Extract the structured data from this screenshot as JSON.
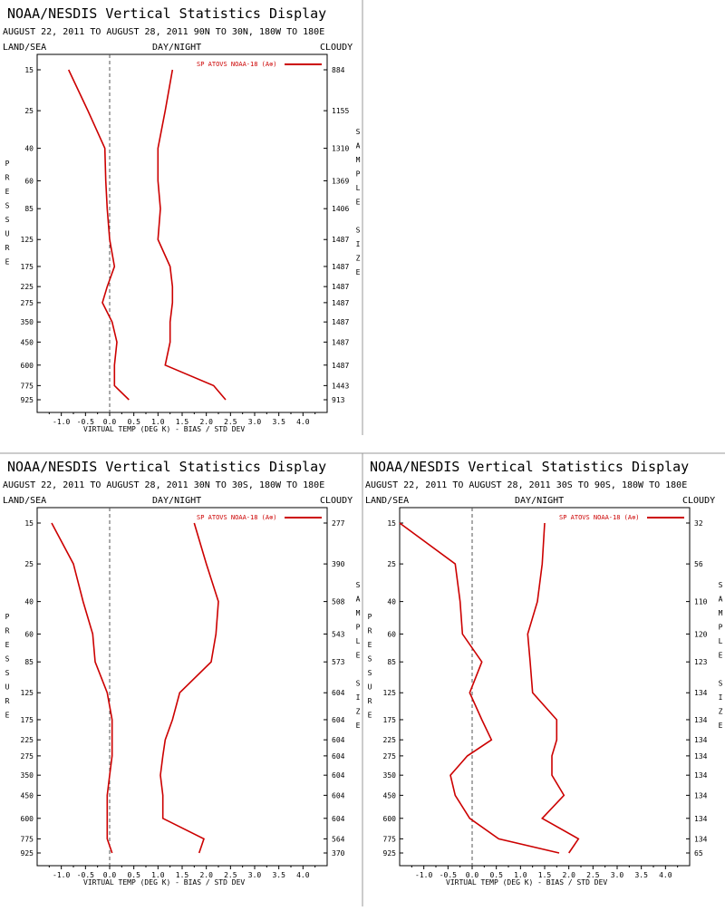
{
  "colors": {
    "line": "#cc0000",
    "frame": "#000000",
    "divider": "#999999",
    "zero": "#555555"
  },
  "panels": [
    {
      "title": "NOAA/NESDIS Vertical Statistics Display",
      "subtitle": "AUGUST 22, 2011 TO AUGUST 28, 2011  90N TO 30N, 180W TO 180E",
      "left_label": "LAND/SEA",
      "center_label": "DAY/NIGHT",
      "right_label": "CLOUDY",
      "legend": "SP ATOVS NOAA-18 (A⊗)",
      "y_axis_title": "PRESSURE",
      "right_axis_title": "SAMPLE SIZE",
      "x_axis_title": "VIRTUAL TEMP (DEG K) - BIAS / STD DEV"
    },
    {
      "title": "NOAA/NESDIS Vertical Statistics Display",
      "subtitle": "AUGUST 22, 2011 TO AUGUST 28, 2011  30N TO 30S, 180W TO 180E",
      "left_label": "LAND/SEA",
      "center_label": "DAY/NIGHT",
      "right_label": "CLOUDY",
      "legend": "SP ATOVS NOAA-18 (A⊗)",
      "y_axis_title": "PRESSURE",
      "right_axis_title": "SAMPLE SIZE",
      "x_axis_title": "VIRTUAL TEMP (DEG K) - BIAS / STD DEV"
    },
    {
      "title": "NOAA/NESDIS Vertical Statistics Display",
      "subtitle": "AUGUST 22, 2011 TO AUGUST 28, 2011  30S TO 90S, 180W TO 180E",
      "left_label": "LAND/SEA",
      "center_label": "DAY/NIGHT",
      "right_label": "CLOUDY",
      "legend": "SP ATOVS NOAA-18 (A⊗)",
      "y_axis_title": "PRESSURE",
      "right_axis_title": "SAMPLE SIZE",
      "x_axis_title": "VIRTUAL TEMP (DEG K) - BIAS / STD DEV"
    }
  ],
  "chart_data": [
    {
      "type": "line",
      "region": "90N TO 30N, 180W TO 180E",
      "pressure_levels": [
        "15",
        "25",
        "40",
        "60",
        "85",
        "125",
        "175",
        "225",
        "275",
        "350",
        "450",
        "600",
        "775",
        "925"
      ],
      "x_ticks": [
        "-1.0",
        "-0.5",
        "0.0",
        "0.5",
        "1.0",
        "1.5",
        "2.0",
        "2.5",
        "3.0",
        "3.5",
        "4.0"
      ],
      "xlim": [
        -1.5,
        4.5
      ],
      "series": [
        {
          "values": [
            -0.85,
            -0.45,
            -0.1,
            -0.08,
            -0.05,
            0.0,
            0.1,
            -0.05,
            -0.15,
            0.05,
            0.15,
            0.1,
            0.1,
            0.4
          ]
        },
        {
          "values": [
            1.3,
            1.15,
            1.0,
            1.0,
            1.05,
            1.0,
            1.25,
            1.3,
            1.3,
            1.25,
            1.25,
            1.15,
            2.15,
            2.4
          ]
        }
      ],
      "sample_size": [
        "884",
        "1155",
        "1310",
        "1369",
        "1406",
        "1487",
        "1487",
        "1487",
        "1487",
        "1487",
        "1487",
        "1487",
        "1443",
        "913"
      ]
    },
    {
      "type": "line",
      "region": "30N TO 30S, 180W TO 180E",
      "pressure_levels": [
        "15",
        "25",
        "40",
        "60",
        "85",
        "125",
        "175",
        "225",
        "275",
        "350",
        "450",
        "600",
        "775",
        "925"
      ],
      "x_ticks": [
        "-1.0",
        "-0.5",
        "0.0",
        "0.5",
        "1.0",
        "1.5",
        "2.0",
        "2.5",
        "3.0",
        "3.5",
        "4.0"
      ],
      "xlim": [
        -1.5,
        4.5
      ],
      "series": [
        {
          "values": [
            -1.2,
            -0.75,
            -0.55,
            -0.35,
            -0.3,
            -0.05,
            0.05,
            0.05,
            0.05,
            0.0,
            -0.05,
            -0.05,
            -0.05,
            0.05
          ]
        },
        {
          "values": [
            1.75,
            2.0,
            2.25,
            2.2,
            2.1,
            1.45,
            1.3,
            1.15,
            1.1,
            1.05,
            1.1,
            1.1,
            1.95,
            1.85
          ]
        }
      ],
      "sample_size": [
        "277",
        "390",
        "508",
        "543",
        "573",
        "604",
        "604",
        "604",
        "604",
        "604",
        "604",
        "604",
        "564",
        "370"
      ]
    },
    {
      "type": "line",
      "region": "30S TO 90S, 180W TO 180E",
      "pressure_levels": [
        "15",
        "25",
        "40",
        "60",
        "85",
        "125",
        "175",
        "225",
        "275",
        "350",
        "450",
        "600",
        "775",
        "925"
      ],
      "x_ticks": [
        "-1.0",
        "-0.5",
        "0.0",
        "0.5",
        "1.0",
        "1.5",
        "2.0",
        "2.5",
        "3.0",
        "3.5",
        "4.0"
      ],
      "xlim": [
        -1.5,
        4.5
      ],
      "series": [
        {
          "values": [
            -1.5,
            -0.35,
            -0.25,
            -0.2,
            0.2,
            -0.05,
            0.2,
            0.4,
            -0.1,
            -0.45,
            -0.35,
            -0.05,
            0.55,
            1.8
          ]
        },
        {
          "values": [
            1.5,
            1.45,
            1.35,
            1.15,
            1.2,
            1.25,
            1.75,
            1.75,
            1.65,
            1.65,
            1.9,
            1.45,
            2.2,
            2.0
          ]
        }
      ],
      "sample_size": [
        "32",
        "56",
        "110",
        "120",
        "123",
        "134",
        "134",
        "134",
        "134",
        "134",
        "134",
        "134",
        "134",
        "65"
      ]
    }
  ]
}
